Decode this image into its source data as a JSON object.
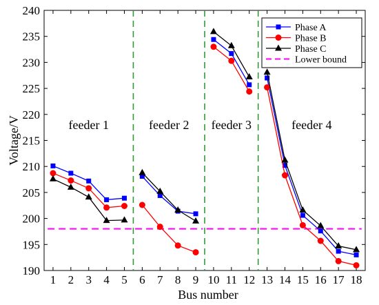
{
  "chart_data": {
    "type": "line",
    "title": "",
    "xlabel": "Bus number",
    "ylabel": "Voltage/V",
    "xlim": [
      0.5,
      18.5
    ],
    "ylim": [
      190,
      240
    ],
    "x_ticks": [
      1,
      2,
      3,
      4,
      5,
      6,
      7,
      8,
      9,
      10,
      11,
      12,
      13,
      14,
      15,
      16,
      17,
      18
    ],
    "y_ticks": [
      190,
      195,
      200,
      205,
      210,
      215,
      220,
      225,
      230,
      235,
      240
    ],
    "grid": false,
    "legend_position": "top-right",
    "series": [
      {
        "name": "Phase A",
        "color": "#0000ff",
        "marker": "square",
        "segments": [
          {
            "x": [
              1,
              2,
              3,
              4,
              5
            ],
            "y": [
              210.1,
              208.7,
              207.2,
              203.6,
              203.9
            ]
          },
          {
            "x": [
              6,
              7,
              8,
              9
            ],
            "y": [
              208.1,
              204.4,
              201.4,
              200.9
            ]
          },
          {
            "x": [
              10,
              11,
              12
            ],
            "y": [
              234.4,
              231.7,
              225.7
            ]
          },
          {
            "x": [
              13,
              14,
              15,
              16,
              17,
              18
            ],
            "y": [
              227.0,
              210.2,
              200.6,
              197.6,
              193.7,
              193.0
            ]
          }
        ]
      },
      {
        "name": "Phase B",
        "color": "#ff0000",
        "marker": "circle",
        "segments": [
          {
            "x": [
              1,
              2,
              3,
              4,
              5
            ],
            "y": [
              208.7,
              207.3,
              205.8,
              202.1,
              202.4
            ]
          },
          {
            "x": [
              6,
              7,
              8,
              9
            ],
            "y": [
              202.6,
              198.4,
              194.8,
              193.5
            ]
          },
          {
            "x": [
              10,
              11,
              12
            ],
            "y": [
              233.0,
              230.3,
              224.4
            ]
          },
          {
            "x": [
              13,
              14,
              15,
              16,
              17,
              18
            ],
            "y": [
              225.2,
              208.3,
              198.7,
              195.7,
              191.8,
              191.0
            ]
          }
        ]
      },
      {
        "name": "Phase C",
        "color": "#000000",
        "marker": "triangle",
        "segments": [
          {
            "x": [
              1,
              2,
              3,
              4,
              5
            ],
            "y": [
              207.6,
              206.0,
              204.1,
              199.6,
              199.7
            ]
          },
          {
            "x": [
              6,
              7,
              8,
              9
            ],
            "y": [
              208.8,
              205.2,
              201.6,
              199.5
            ]
          },
          {
            "x": [
              10,
              11,
              12
            ],
            "y": [
              235.9,
              233.2,
              227.2
            ]
          },
          {
            "x": [
              13,
              14,
              15,
              16,
              17,
              18
            ],
            "y": [
              228.1,
              211.2,
              201.6,
              198.6,
              194.7,
              194.0
            ]
          }
        ]
      }
    ],
    "lower_bound": {
      "name": "Lower bound",
      "color": "#ff00ff",
      "y": 198,
      "segments": [
        [
          0.7,
          5.4
        ],
        [
          5.6,
          9.4
        ],
        [
          9.6,
          12.4
        ],
        [
          12.6,
          18.3
        ]
      ]
    },
    "feeder_dividers": {
      "color": "#339933",
      "x": [
        5.5,
        9.5,
        12.5
      ]
    },
    "feeder_labels": [
      {
        "text": "feeder 1",
        "x": 3,
        "y": 218
      },
      {
        "text": "feeder 2",
        "x": 7.5,
        "y": 218
      },
      {
        "text": "feeder 3",
        "x": 11,
        "y": 218
      },
      {
        "text": "feeder 4",
        "x": 15.5,
        "y": 218
      }
    ]
  }
}
